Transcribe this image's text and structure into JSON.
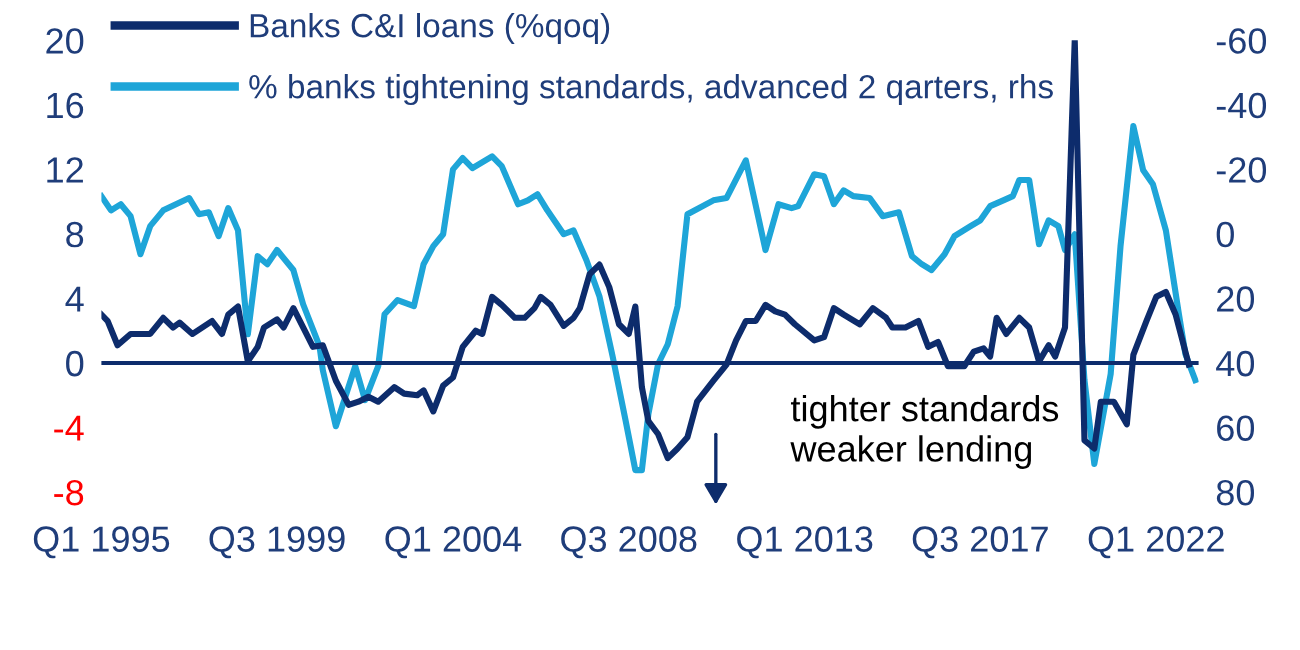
{
  "chart_data": {
    "type": "line",
    "xlim": [
      "1995-01",
      "2023-02"
    ],
    "xticks": [
      {
        "value": "1995-01",
        "label": "Q1 1995"
      },
      {
        "value": "1999-07",
        "label": "Q3 1999"
      },
      {
        "value": "2004-01",
        "label": "Q1 2004"
      },
      {
        "value": "2008-07",
        "label": "Q3 2008"
      },
      {
        "value": "2013-01",
        "label": "Q1 2013"
      },
      {
        "value": "2017-07",
        "label": "Q3 2017"
      },
      {
        "value": "2022-01",
        "label": "Q1 2022"
      }
    ],
    "ylim": [
      -8,
      20
    ],
    "yticks": [
      -8,
      -4,
      0,
      4,
      8,
      12,
      16,
      20
    ],
    "y2lim": [
      80,
      -60
    ],
    "y2ticks": [
      -60,
      -40,
      -20,
      0,
      20,
      40,
      60,
      80
    ],
    "grid": false,
    "legend": "top left",
    "marker": "none",
    "line_style": "solid",
    "ref_lines": [
      {
        "axis": "y",
        "value": 0,
        "color": "#0d2c6c"
      }
    ],
    "annotations": [
      "tighter standards\nweaker lending"
    ],
    "series": [
      {
        "name": "Banks C&I loans (%qoq)",
        "color": "#0d2c6c",
        "x": [
          "1995-01",
          "1995-03",
          "1995-06",
          "1995-10",
          "1996-04",
          "1996-08",
          "1996-11",
          "1997-01",
          "1997-05",
          "1997-08",
          "1997-11",
          "1998-02",
          "1998-04",
          "1998-07",
          "1998-10",
          "1999-01",
          "1999-03",
          "1999-07",
          "1999-09",
          "1999-12",
          "2000-03",
          "2000-06",
          "2000-09",
          "2001-01",
          "2001-05",
          "2001-08",
          "2001-11",
          "2002-02",
          "2002-07",
          "2002-10",
          "2003-02",
          "2003-04",
          "2003-07",
          "2003-10",
          "2004-01",
          "2004-04",
          "2004-08",
          "2004-10",
          "2005-01",
          "2005-04",
          "2005-08",
          "2005-11",
          "2006-02",
          "2006-04",
          "2006-07",
          "2006-11",
          "2007-02",
          "2007-04",
          "2007-07",
          "2007-10",
          "2008-01",
          "2008-04",
          "2008-07",
          "2008-09",
          "2008-11",
          "2009-01",
          "2009-04",
          "2009-07",
          "2009-10",
          "2010-01",
          "2010-04",
          "2010-09",
          "2011-01",
          "2011-04",
          "2011-07",
          "2011-10",
          "2012-01",
          "2012-04",
          "2012-07",
          "2012-10",
          "2013-04",
          "2013-07",
          "2013-10",
          "2014-01",
          "2014-06",
          "2014-10",
          "2015-02",
          "2015-04",
          "2015-08",
          "2015-12",
          "2016-03",
          "2016-06",
          "2016-09",
          "2017-02",
          "2017-05",
          "2017-08",
          "2017-10",
          "2017-12",
          "2018-03",
          "2018-07",
          "2018-10",
          "2019-01",
          "2019-04",
          "2019-06",
          "2019-09",
          "2019-11",
          "2019-12",
          "2020-03",
          "2020-06",
          "2020-08",
          "2020-12",
          "2021-04",
          "2021-06",
          "2021-10",
          "2022-01",
          "2022-04",
          "2022-07",
          "2022-11"
        ],
        "values": [
          3.0,
          2.6,
          1.1,
          1.8,
          1.8,
          2.8,
          2.2,
          2.5,
          1.8,
          2.2,
          2.6,
          1.8,
          3.0,
          3.5,
          0.1,
          1.0,
          2.2,
          2.7,
          2.2,
          3.4,
          2.2,
          1.0,
          1.1,
          -1.1,
          -2.6,
          -2.4,
          -2.1,
          -2.4,
          -1.5,
          -1.9,
          -2.0,
          -1.7,
          -3.0,
          -1.4,
          -0.9,
          1.0,
          2.0,
          1.8,
          4.1,
          3.6,
          2.8,
          2.8,
          3.4,
          4.1,
          3.6,
          2.3,
          2.8,
          3.4,
          5.5,
          6.1,
          4.7,
          2.4,
          1.8,
          3.5,
          -1.5,
          -3.6,
          -4.4,
          -5.9,
          -5.3,
          -4.6,
          -2.4,
          -1.1,
          -0.1,
          1.4,
          2.6,
          2.6,
          3.6,
          3.2,
          3.0,
          2.4,
          1.4,
          1.6,
          3.4,
          3.0,
          2.4,
          3.4,
          2.8,
          2.2,
          2.2,
          2.6,
          1.0,
          1.3,
          -0.2,
          -0.2,
          0.7,
          0.9,
          0.4,
          2.8,
          1.8,
          2.8,
          2.2,
          0.1,
          1.1,
          0.4,
          2.2,
          14.2,
          20,
          -4.8,
          -5.3,
          -2.4,
          -2.4,
          -3.8,
          0.5,
          2.6,
          4.1,
          4.4,
          3.0,
          -0.1
        ]
      },
      {
        "name": "% banks tightening standards, advanced 2 qarters, rhs",
        "color": "#1ea5d8",
        "axis": "y2",
        "x": [
          "1995-01",
          "1995-04",
          "1995-07",
          "1995-10",
          "1996-01",
          "1996-04",
          "1996-08",
          "1997-04",
          "1997-07",
          "1997-10",
          "1998-01",
          "1998-04",
          "1998-07",
          "1998-10",
          "1999-01",
          "1999-04",
          "1999-07",
          "1999-12",
          "2000-03",
          "2000-08",
          "2000-09",
          "2001-01",
          "2001-07",
          "2001-10",
          "2002-02",
          "2002-04",
          "2002-08",
          "2003-01",
          "2003-04",
          "2003-07",
          "2003-10",
          "2004-01",
          "2004-04",
          "2004-07",
          "2005-01",
          "2005-04",
          "2005-09",
          "2005-12",
          "2006-03",
          "2006-06",
          "2006-11",
          "2007-02",
          "2007-06",
          "2007-10",
          "2008-02",
          "2008-06",
          "2008-09",
          "2008-11",
          "2009-01",
          "2009-04",
          "2009-07",
          "2009-10",
          "2010-01",
          "2010-09",
          "2011-01",
          "2011-07",
          "2012-01",
          "2012-05",
          "2012-09",
          "2012-11",
          "2013-04",
          "2013-07",
          "2013-10",
          "2014-01",
          "2014-04",
          "2014-09",
          "2015-01",
          "2015-06",
          "2015-10",
          "2016-01",
          "2016-04",
          "2016-08",
          "2016-11",
          "2017-04",
          "2017-07",
          "2017-10",
          "2018-02",
          "2018-05",
          "2018-07",
          "2018-10",
          "2019-01",
          "2019-04",
          "2019-07",
          "2019-09",
          "2019-12",
          "2020-03",
          "2020-06",
          "2020-11",
          "2021-02",
          "2021-06",
          "2021-09",
          "2021-12",
          "2022-04",
          "2022-08",
          "2022-10",
          "2023-01"
        ],
        "values": [
          -11.7,
          -7.3,
          -9.2,
          -5.5,
          6.3,
          -2.4,
          -7.3,
          -11.1,
          -6.1,
          -6.7,
          0.7,
          -8.0,
          -1.1,
          31.1,
          6.9,
          9.4,
          5.0,
          11.2,
          21.8,
          34.8,
          42.2,
          59.6,
          41,
          51.5,
          41,
          24.9,
          20.5,
          22.4,
          9.4,
          3.8,
          0.1,
          -20,
          -23.5,
          -20.4,
          -24,
          -21,
          -9.2,
          -10.4,
          -12.3,
          -7.3,
          0.1,
          -1.1,
          8.1,
          19.3,
          37.9,
          57.7,
          73.2,
          73.2,
          55.8,
          40.4,
          34.2,
          22.4,
          -6.1,
          -10.4,
          -11.1,
          -22.8,
          5.0,
          -9.2,
          -8,
          -8.6,
          -18.5,
          -17.9,
          -9.2,
          -13.5,
          -11.7,
          -11.1,
          -5.5,
          -6.7,
          6.9,
          9.4,
          11.2,
          6.3,
          0.7,
          -2.4,
          -4.2,
          -8.6,
          -10.4,
          -11.7,
          -16.7,
          -16.7,
          3.2,
          -4.2,
          -2.4,
          5.0,
          0.1,
          45.3,
          71.3,
          43.4,
          3.8,
          -33.4,
          -19.7,
          -15.4,
          -1.1,
          24.9,
          37.3,
          45.3
        ]
      }
    ]
  }
}
